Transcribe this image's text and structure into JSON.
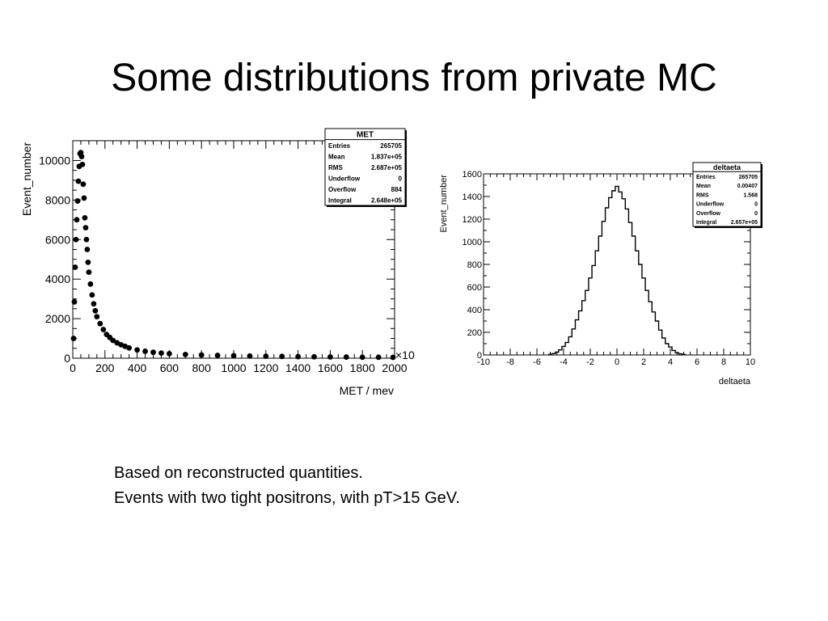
{
  "slide": {
    "title": "Some distributions from private MC",
    "notes": [
      "Based on reconstructed quantities.",
      "Events with two tight positrons, with pT>15 GeV."
    ]
  },
  "chart_data": [
    {
      "type": "scatter",
      "name": "MET",
      "xlabel": "MET / mev",
      "ylabel": "Event_number",
      "x_multiplier": "×10",
      "xlim": [
        0,
        2000
      ],
      "ylim": [
        0,
        11000
      ],
      "xticks": [
        0,
        200,
        400,
        600,
        800,
        1000,
        1200,
        1400,
        1600,
        1800,
        2000
      ],
      "yticks": [
        0,
        2000,
        4000,
        6000,
        8000,
        10000
      ],
      "grid": false,
      "stats": {
        "title": "MET",
        "rows": [
          {
            "label": "Entries",
            "value": "265705"
          },
          {
            "label": "Mean",
            "value": "1.837e+05"
          },
          {
            "label": "RMS",
            "value": "2.687e+05"
          },
          {
            "label": "Underflow",
            "value": "0"
          },
          {
            "label": "Overflow",
            "value": "884"
          },
          {
            "label": "Integral",
            "value": "2.648e+05"
          }
        ]
      },
      "x": [
        5,
        10,
        15,
        20,
        25,
        30,
        35,
        40,
        45,
        50,
        55,
        60,
        65,
        70,
        75,
        80,
        85,
        90,
        95,
        100,
        110,
        120,
        130,
        140,
        150,
        170,
        190,
        210,
        230,
        250,
        275,
        300,
        325,
        350,
        400,
        450,
        500,
        550,
        600,
        700,
        800,
        900,
        1000,
        1100,
        1200,
        1300,
        1400,
        1500,
        1600,
        1700,
        1800,
        1900,
        1990
      ],
      "y": [
        1000,
        2850,
        4600,
        6000,
        7000,
        7950,
        8950,
        9700,
        10350,
        10400,
        10200,
        9800,
        8800,
        8100,
        7100,
        6600,
        6000,
        5500,
        4850,
        4350,
        3750,
        3200,
        2750,
        2400,
        2100,
        1750,
        1450,
        1200,
        1050,
        900,
        780,
        680,
        600,
        520,
        420,
        350,
        300,
        260,
        230,
        190,
        160,
        140,
        125,
        110,
        100,
        90,
        80,
        72,
        65,
        58,
        52,
        47,
        43
      ]
    },
    {
      "type": "line",
      "name": "deltaeta",
      "xlabel": "deltaeta",
      "ylabel": "Event_number",
      "xlim": [
        -10,
        10
      ],
      "ylim": [
        0,
        1600
      ],
      "xticks": [
        -10,
        -8,
        -6,
        -4,
        -2,
        0,
        2,
        4,
        6,
        8,
        10
      ],
      "yticks": [
        0,
        200,
        400,
        600,
        800,
        1000,
        1200,
        1400,
        1600
      ],
      "grid": false,
      "stats": {
        "title": "deltaeta",
        "rows": [
          {
            "label": "Entries",
            "value": "265705"
          },
          {
            "label": "Mean",
            "value": "0.00407"
          },
          {
            "label": "RMS",
            "value": "1.568"
          },
          {
            "label": "Underflow",
            "value": "0"
          },
          {
            "label": "Overflow",
            "value": "0"
          },
          {
            "label": "Integral",
            "value": "2.657e+05"
          }
        ]
      },
      "x": [
        -5.0,
        -4.75,
        -4.5,
        -4.25,
        -4.0,
        -3.75,
        -3.5,
        -3.25,
        -3.0,
        -2.75,
        -2.5,
        -2.25,
        -2.0,
        -1.75,
        -1.5,
        -1.25,
        -1.0,
        -0.75,
        -0.5,
        -0.25,
        0.0,
        0.25,
        0.5,
        0.75,
        1.0,
        1.25,
        1.5,
        1.75,
        2.0,
        2.25,
        2.5,
        2.75,
        3.0,
        3.25,
        3.5,
        3.75,
        4.0,
        4.25,
        4.5,
        4.75,
        5.0
      ],
      "y": [
        5,
        12,
        25,
        45,
        75,
        110,
        160,
        230,
        310,
        390,
        480,
        570,
        680,
        790,
        920,
        1050,
        1180,
        1300,
        1390,
        1450,
        1490,
        1440,
        1380,
        1290,
        1170,
        1050,
        920,
        800,
        680,
        570,
        470,
        380,
        300,
        220,
        150,
        100,
        70,
        40,
        20,
        10,
        5
      ]
    }
  ]
}
